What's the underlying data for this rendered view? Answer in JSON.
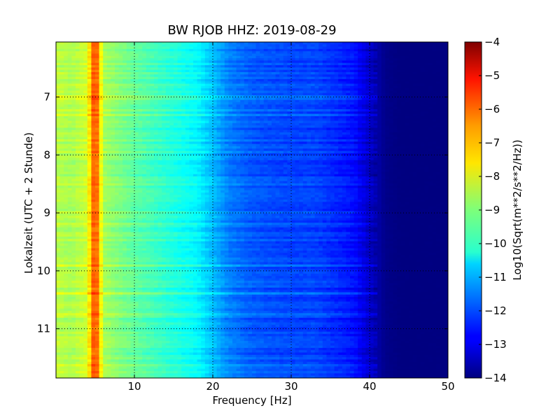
{
  "chart_data": {
    "type": "heatmap",
    "title": "BW RJOB HHZ: 2019-08-29",
    "xlabel": "Frequency [Hz]",
    "ylabel": "Lokalzeit (UTC + 2 Stunde)",
    "xlim": [
      0,
      50
    ],
    "ylim": [
      6.05,
      11.85
    ],
    "x_ticks": [
      10,
      20,
      30,
      40,
      50
    ],
    "x_tick_labels": [
      "10",
      "20",
      "30",
      "40",
      "50"
    ],
    "y_ticks": [
      7,
      8,
      9,
      10,
      11
    ],
    "y_tick_labels": [
      "7",
      "8",
      "9",
      "10",
      "11"
    ],
    "grid": true,
    "colormap": "jet",
    "colorbar": {
      "label": "Log10(Sqrt(m**2/s**2/Hz))",
      "min": -14,
      "max": -4,
      "ticks": [
        -4,
        -5,
        -6,
        -7,
        -8,
        -9,
        -10,
        -11,
        -12,
        -13,
        -14
      ],
      "tick_labels": [
        "−4",
        "−5",
        "−6",
        "−7",
        "−8",
        "−9",
        "−10",
        "−11",
        "−12",
        "−13",
        "−14"
      ]
    },
    "spectral_profile": {
      "frequency_hz": [
        0,
        2,
        4,
        5,
        6,
        8,
        10,
        14,
        18,
        20,
        22,
        25,
        30,
        33,
        35,
        38,
        40,
        42,
        44,
        50
      ],
      "log10_amplitude": [
        -8.4,
        -8.6,
        -8.2,
        -5.6,
        -8.6,
        -9.0,
        -9.3,
        -9.8,
        -10.3,
        -10.9,
        -11.5,
        -11.9,
        -12.1,
        -12.1,
        -12.3,
        -12.6,
        -13.3,
        -13.9,
        -14,
        -14
      ]
    }
  }
}
